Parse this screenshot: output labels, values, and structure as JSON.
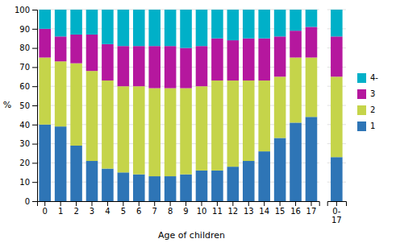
{
  "chart_data": [
    {
      "type": "bar",
      "stacked": true,
      "grid": true,
      "legend": "right",
      "xlabel": "Age of children",
      "ylabel": "%",
      "categories": [
        "0",
        "1",
        "2",
        "3",
        "4",
        "5",
        "6",
        "7",
        "8",
        "9",
        "10",
        "11",
        "12",
        "13",
        "14",
        "15",
        "16",
        "17"
      ],
      "series": [
        {
          "name": "1",
          "color": "#2e75b6",
          "values": [
            40,
            39,
            29,
            21,
            17,
            15,
            14,
            13,
            13,
            14,
            16,
            16,
            18,
            21,
            26,
            33,
            41,
            44
          ]
        },
        {
          "name": "2",
          "color": "#c5d44a",
          "values": [
            35,
            34,
            43,
            47,
            46,
            45,
            46,
            46,
            46,
            45,
            44,
            47,
            45,
            42,
            37,
            32,
            34,
            31
          ]
        },
        {
          "name": "3",
          "color": "#b5179e",
          "values": [
            15,
            13,
            15,
            19,
            19,
            21,
            21,
            22,
            22,
            21,
            21,
            22,
            21,
            22,
            22,
            21,
            14,
            16
          ]
        },
        {
          "name": "4-",
          "color": "#00b0c8",
          "values": [
            10,
            14,
            13,
            13,
            18,
            19,
            19,
            19,
            19,
            20,
            19,
            15,
            16,
            15,
            15,
            14,
            11,
            9
          ]
        }
      ],
      "ylim": [
        0,
        100
      ],
      "yticks": [
        0,
        10,
        20,
        30,
        40,
        50,
        60,
        70,
        80,
        90,
        100
      ]
    },
    {
      "type": "bar",
      "stacked": true,
      "grid": true,
      "tick_labels": "x",
      "categories": [
        "0-\n17"
      ],
      "series": [
        {
          "color": "#2e75b6",
          "values": [
            23
          ]
        },
        {
          "color": "#c5d44a",
          "values": [
            42
          ]
        },
        {
          "color": "#b5179e",
          "values": [
            21
          ]
        },
        {
          "color": "#00b0c8",
          "values": [
            14
          ]
        }
      ],
      "ylim": [
        0,
        100
      ],
      "yticks": [
        0,
        10,
        20,
        30,
        40,
        50,
        60,
        70,
        80,
        90,
        100
      ]
    }
  ]
}
